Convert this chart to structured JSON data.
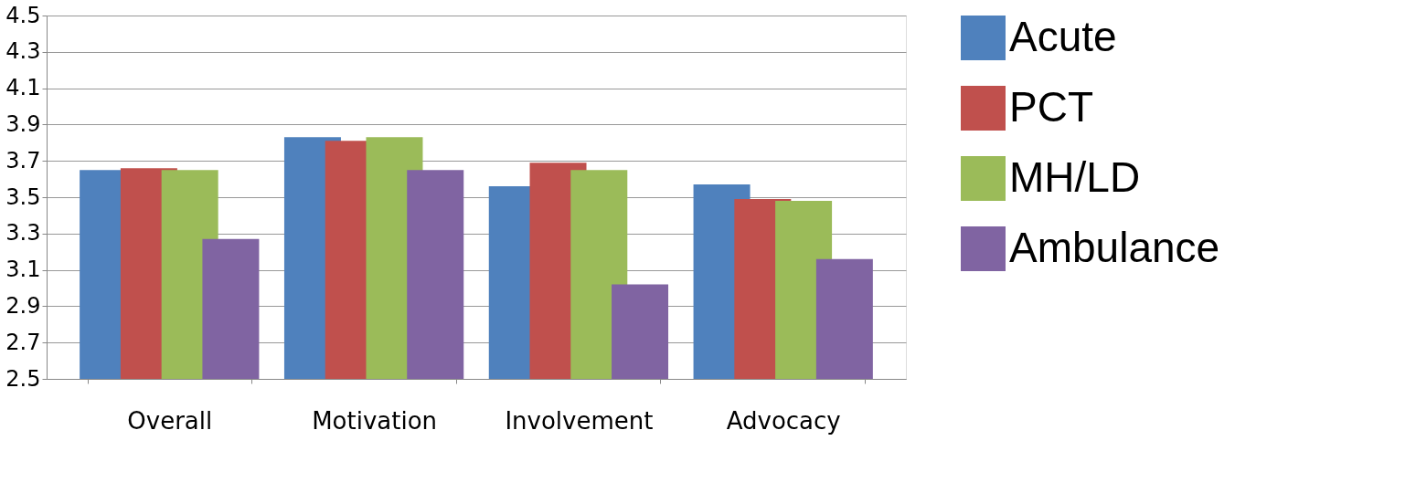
{
  "chart_data": {
    "type": "bar",
    "categories": [
      "Overall",
      "Motivation",
      "Involvement",
      "Advocacy"
    ],
    "series": [
      {
        "name": "Acute",
        "color": "#4f81bd",
        "values": [
          3.65,
          3.83,
          3.56,
          3.57
        ]
      },
      {
        "name": "PCT",
        "color": "#c0504d",
        "values": [
          3.66,
          3.81,
          3.69,
          3.49
        ]
      },
      {
        "name": "MH/LD",
        "color": "#9bbb59",
        "values": [
          3.65,
          3.83,
          3.65,
          3.48
        ]
      },
      {
        "name": "Ambulance",
        "color": "#8064a2",
        "values": [
          3.27,
          3.65,
          3.02,
          3.16
        ]
      }
    ],
    "ylim": [
      2.5,
      4.5
    ],
    "yticks": [
      2.5,
      2.7,
      2.9,
      3.1,
      3.3,
      3.5,
      3.7,
      3.9,
      4.1,
      4.3,
      4.5
    ],
    "grid": "y",
    "legend": "right"
  }
}
